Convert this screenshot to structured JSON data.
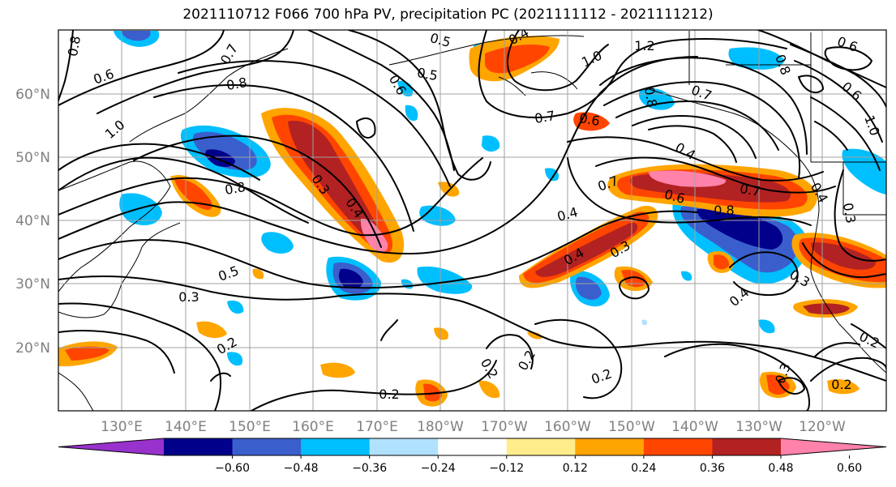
{
  "title": "2021110712 F066 700 hPa PV, precipitation PC (2021111112 - 2021111212)",
  "map": {
    "lat_labels": [
      "60°N",
      "50°N",
      "40°N",
      "30°N",
      "20°N"
    ],
    "lon_labels": [
      "130°E",
      "140°E",
      "150°E",
      "160°E",
      "170°E",
      "180°W",
      "170°W",
      "160°W",
      "150°W",
      "140°W",
      "130°W",
      "120°W"
    ],
    "contour_labels": [
      "0.6",
      "0.7",
      "0.8",
      "0.8",
      "0.5",
      "0.5",
      "0.6",
      "0.4",
      "1.0",
      "1.2",
      "0.6",
      "0.8",
      "0.7",
      "0.6",
      "0.6",
      "1.0",
      "0.7",
      "0.8",
      "0.3",
      "0.4",
      "0.8",
      "1.0",
      "0.5",
      "0.3",
      "0.2",
      "0.4",
      "0.4",
      "0.7",
      "0.6",
      "0.4",
      "0.3",
      "0.7",
      "0.8",
      "0.4",
      "0.3",
      "0.2",
      "0.2",
      "0.2",
      "0.2",
      "0.4",
      "0.3",
      "0.2",
      "0.3",
      "0.2"
    ]
  },
  "colorbar": {
    "colors": [
      "#9932cc",
      "#00008b",
      "#3a5fcd",
      "#00bfff",
      "#b0e2ff",
      "#ffffff",
      "#ffec8b",
      "#ffa500",
      "#ff4500",
      "#b22222",
      "#ff82ab"
    ],
    "tick_labels": [
      "−0.60",
      "−0.48",
      "−0.36",
      "−0.24",
      "−0.12",
      "0.12",
      "0.24",
      "0.36",
      "0.48",
      "0.60"
    ]
  }
}
